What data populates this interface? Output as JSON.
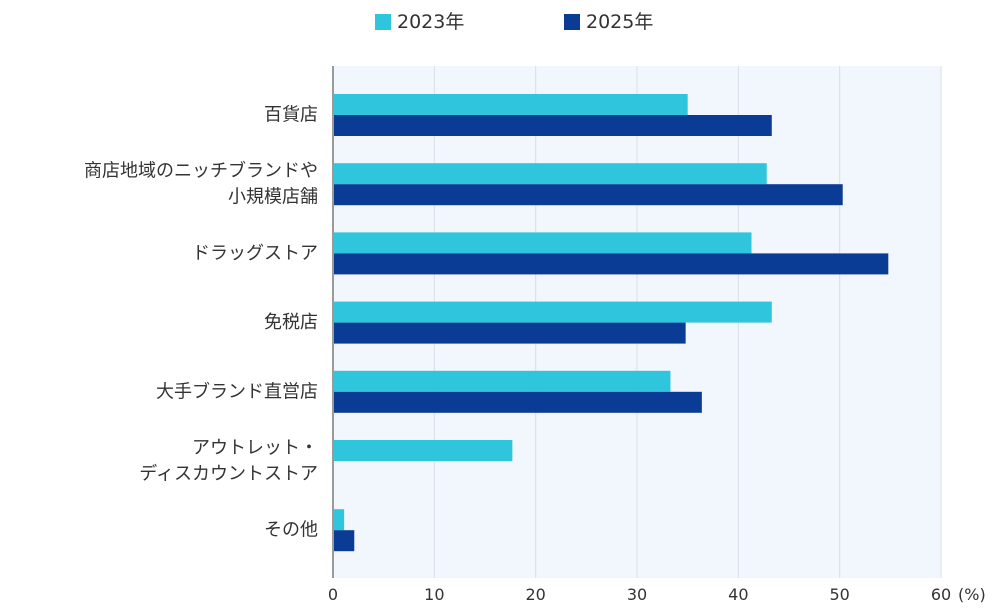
{
  "chart_data": {
    "type": "bar",
    "orientation": "horizontal",
    "categories": [
      [
        "百貨店"
      ],
      [
        "商店地域のニッチブランドや",
        "小規模店舗"
      ],
      [
        "ドラッグストア"
      ],
      [
        "免税店"
      ],
      [
        "大手ブランド直営店"
      ],
      [
        "アウトレット・",
        "ディスカウントストア"
      ],
      [
        "その他"
      ]
    ],
    "series": [
      {
        "name": "2023年",
        "color": "#2ec5dd",
        "values": [
          35.0,
          42.8,
          41.3,
          43.3,
          33.3,
          17.7,
          1.1
        ]
      },
      {
        "name": "2025年",
        "color": "#0a3c96",
        "values": [
          43.3,
          50.3,
          54.8,
          34.8,
          36.4,
          null,
          2.1
        ]
      }
    ],
    "x_ticks": [
      "0",
      "10",
      "20",
      "30",
      "40",
      "50",
      "60"
    ],
    "xlim": [
      0,
      60
    ],
    "x_unit": "(%)",
    "plot_background": "#f1f7fc",
    "grid_color": "#d9e1e8",
    "axis_color": "#9a9a9a",
    "legend_position": "top-center"
  }
}
